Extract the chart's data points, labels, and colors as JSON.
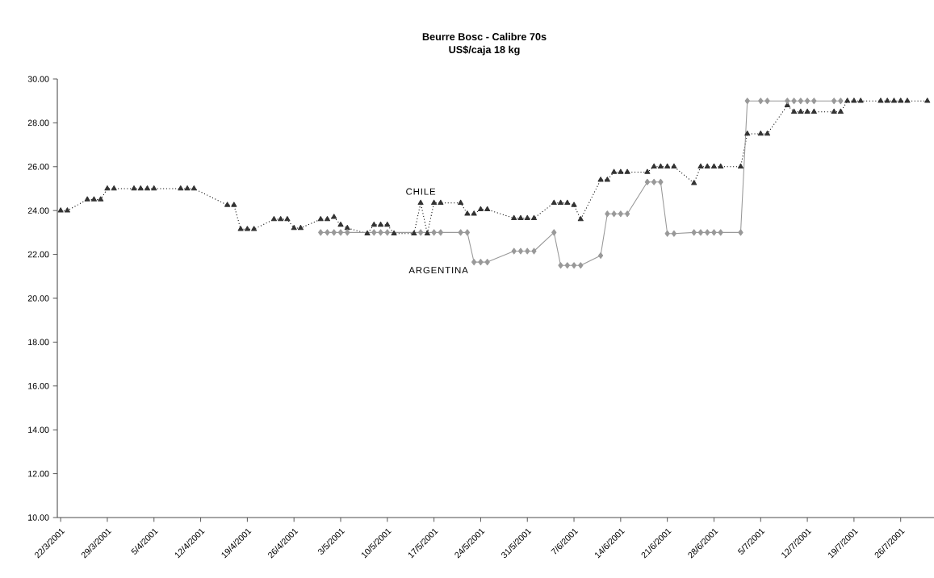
{
  "chart_data": {
    "type": "line",
    "title": "Beurre Bosc - Calibre 70s",
    "subtitle": "US$/caja 18 kg",
    "xlim": [
      "2001-03-21T12:00",
      "2001-07-31"
    ],
    "xticks": [
      {
        "value": "2001-03-22",
        "label": "22/3/2001"
      },
      {
        "value": "2001-03-29",
        "label": "29/3/2001"
      },
      {
        "value": "2001-04-05",
        "label": "5/4/2001"
      },
      {
        "value": "2001-04-12",
        "label": "12/4/2001"
      },
      {
        "value": "2001-04-19",
        "label": "19/4/2001"
      },
      {
        "value": "2001-04-26",
        "label": "26/4/2001"
      },
      {
        "value": "2001-05-03",
        "label": "3/5/2001"
      },
      {
        "value": "2001-05-10",
        "label": "10/5/2001"
      },
      {
        "value": "2001-05-17",
        "label": "17/5/2001"
      },
      {
        "value": "2001-05-24",
        "label": "24/5/2001"
      },
      {
        "value": "2001-05-31",
        "label": "31/5/2001"
      },
      {
        "value": "2001-06-07",
        "label": "7/6/2001"
      },
      {
        "value": "2001-06-14",
        "label": "14/6/2001"
      },
      {
        "value": "2001-06-21",
        "label": "21/6/2001"
      },
      {
        "value": "2001-06-28",
        "label": "28/6/2001"
      },
      {
        "value": "2001-07-05",
        "label": "5/7/2001"
      },
      {
        "value": "2001-07-12",
        "label": "12/7/2001"
      },
      {
        "value": "2001-07-19",
        "label": "19/7/2001"
      },
      {
        "value": "2001-07-26",
        "label": "26/7/2001"
      }
    ],
    "ylim": [
      10,
      30
    ],
    "yticks": [
      {
        "value": 10,
        "label": "10.00"
      },
      {
        "value": 12,
        "label": "12.00"
      },
      {
        "value": 14,
        "label": "14.00"
      },
      {
        "value": 16,
        "label": "16.00"
      },
      {
        "value": 18,
        "label": "18.00"
      },
      {
        "value": 20,
        "label": "20.00"
      },
      {
        "value": 22,
        "label": "22.00"
      },
      {
        "value": 24,
        "label": "24.00"
      },
      {
        "value": 26,
        "label": "26.00"
      },
      {
        "value": 28,
        "label": "28.00"
      },
      {
        "value": 30,
        "label": "30.00"
      }
    ],
    "grid": false,
    "legend": false,
    "series": [
      {
        "name": "CHILE",
        "color": "#333333",
        "marker": "triangle",
        "line_style": "dotted",
        "x": [
          "2001-03-22",
          "2001-03-23",
          "2001-03-26",
          "2001-03-27",
          "2001-03-28",
          "2001-03-29",
          "2001-03-30",
          "2001-04-02",
          "2001-04-03",
          "2001-04-04",
          "2001-04-05",
          "2001-04-09",
          "2001-04-10",
          "2001-04-11",
          "2001-04-16",
          "2001-04-17",
          "2001-04-18",
          "2001-04-19",
          "2001-04-20",
          "2001-04-23",
          "2001-04-24",
          "2001-04-25",
          "2001-04-26",
          "2001-04-27",
          "2001-04-30",
          "2001-05-01",
          "2001-05-02",
          "2001-05-03",
          "2001-05-04",
          "2001-05-07",
          "2001-05-08",
          "2001-05-09",
          "2001-05-10",
          "2001-05-11",
          "2001-05-14",
          "2001-05-15",
          "2001-05-16",
          "2001-05-17",
          "2001-05-18",
          "2001-05-21",
          "2001-05-22",
          "2001-05-23",
          "2001-05-24",
          "2001-05-25",
          "2001-05-29",
          "2001-05-30",
          "2001-05-31",
          "2001-06-01",
          "2001-06-04",
          "2001-06-05",
          "2001-06-06",
          "2001-06-07",
          "2001-06-08",
          "2001-06-11",
          "2001-06-12",
          "2001-06-13",
          "2001-06-14",
          "2001-06-15",
          "2001-06-18",
          "2001-06-19",
          "2001-06-20",
          "2001-06-21",
          "2001-06-22",
          "2001-06-25",
          "2001-06-26",
          "2001-06-27",
          "2001-06-28",
          "2001-06-29",
          "2001-07-02",
          "2001-07-03",
          "2001-07-05",
          "2001-07-06",
          "2001-07-09",
          "2001-07-10",
          "2001-07-11",
          "2001-07-12",
          "2001-07-13",
          "2001-07-16",
          "2001-07-17",
          "2001-07-18",
          "2001-07-19",
          "2001-07-20",
          "2001-07-23",
          "2001-07-24",
          "2001-07-25",
          "2001-07-26",
          "2001-07-27",
          "2001-07-30"
        ],
        "values": [
          24.0,
          24.0,
          24.5,
          24.5,
          24.5,
          25.0,
          25.0,
          25.0,
          25.0,
          25.0,
          25.0,
          25.0,
          25.0,
          25.0,
          24.25,
          24.25,
          23.15,
          23.15,
          23.15,
          23.6,
          23.6,
          23.6,
          23.2,
          23.2,
          23.6,
          23.6,
          23.7,
          23.35,
          23.2,
          22.95,
          23.35,
          23.35,
          23.35,
          22.95,
          22.95,
          24.35,
          22.95,
          24.35,
          24.35,
          24.35,
          23.85,
          23.85,
          24.05,
          24.05,
          23.65,
          23.65,
          23.65,
          23.65,
          24.35,
          24.35,
          24.35,
          24.25,
          23.6,
          25.4,
          25.4,
          25.75,
          25.75,
          25.75,
          25.75,
          26.0,
          26.0,
          26.0,
          26.0,
          25.25,
          26.0,
          26.0,
          26.0,
          26.0,
          26.0,
          27.5,
          27.5,
          27.5,
          28.8,
          28.5,
          28.5,
          28.5,
          28.5,
          28.5,
          28.5,
          29.0,
          29.0,
          29.0,
          29.0,
          29.0,
          29.0,
          29.0,
          29.0,
          29.0
        ]
      },
      {
        "name": "ARGENTINA",
        "color": "#999999",
        "marker": "diamond",
        "line_style": "solid",
        "x": [
          "2001-04-30",
          "2001-05-01",
          "2001-05-02",
          "2001-05-03",
          "2001-05-04",
          "2001-05-08",
          "2001-05-09",
          "2001-05-10",
          "2001-05-15",
          "2001-05-17",
          "2001-05-18",
          "2001-05-21",
          "2001-05-22",
          "2001-05-23",
          "2001-05-24",
          "2001-05-25",
          "2001-05-29",
          "2001-05-30",
          "2001-05-31",
          "2001-06-01",
          "2001-06-04",
          "2001-06-05",
          "2001-06-06",
          "2001-06-07",
          "2001-06-08",
          "2001-06-11",
          "2001-06-12",
          "2001-06-13",
          "2001-06-14",
          "2001-06-15",
          "2001-06-18",
          "2001-06-19",
          "2001-06-20",
          "2001-06-21",
          "2001-06-22",
          "2001-06-25",
          "2001-06-26",
          "2001-06-27",
          "2001-06-28",
          "2001-06-29",
          "2001-07-02",
          "2001-07-03",
          "2001-07-05",
          "2001-07-06",
          "2001-07-09",
          "2001-07-10",
          "2001-07-11",
          "2001-07-12",
          "2001-07-13",
          "2001-07-16",
          "2001-07-17"
        ],
        "values": [
          23.0,
          23.0,
          23.0,
          23.0,
          23.0,
          23.0,
          23.0,
          23.0,
          23.0,
          23.0,
          23.0,
          23.0,
          23.0,
          21.65,
          21.65,
          21.65,
          22.15,
          22.15,
          22.15,
          22.15,
          23.0,
          21.5,
          21.5,
          21.5,
          21.5,
          21.95,
          23.85,
          23.85,
          23.85,
          23.85,
          25.3,
          25.3,
          25.3,
          22.95,
          22.95,
          23.0,
          23.0,
          23.0,
          23.0,
          23.0,
          23.0,
          29.0,
          29.0,
          29.0,
          29.0,
          29.0,
          29.0,
          29.0,
          29.0,
          29.0,
          29.0
        ]
      }
    ]
  }
}
